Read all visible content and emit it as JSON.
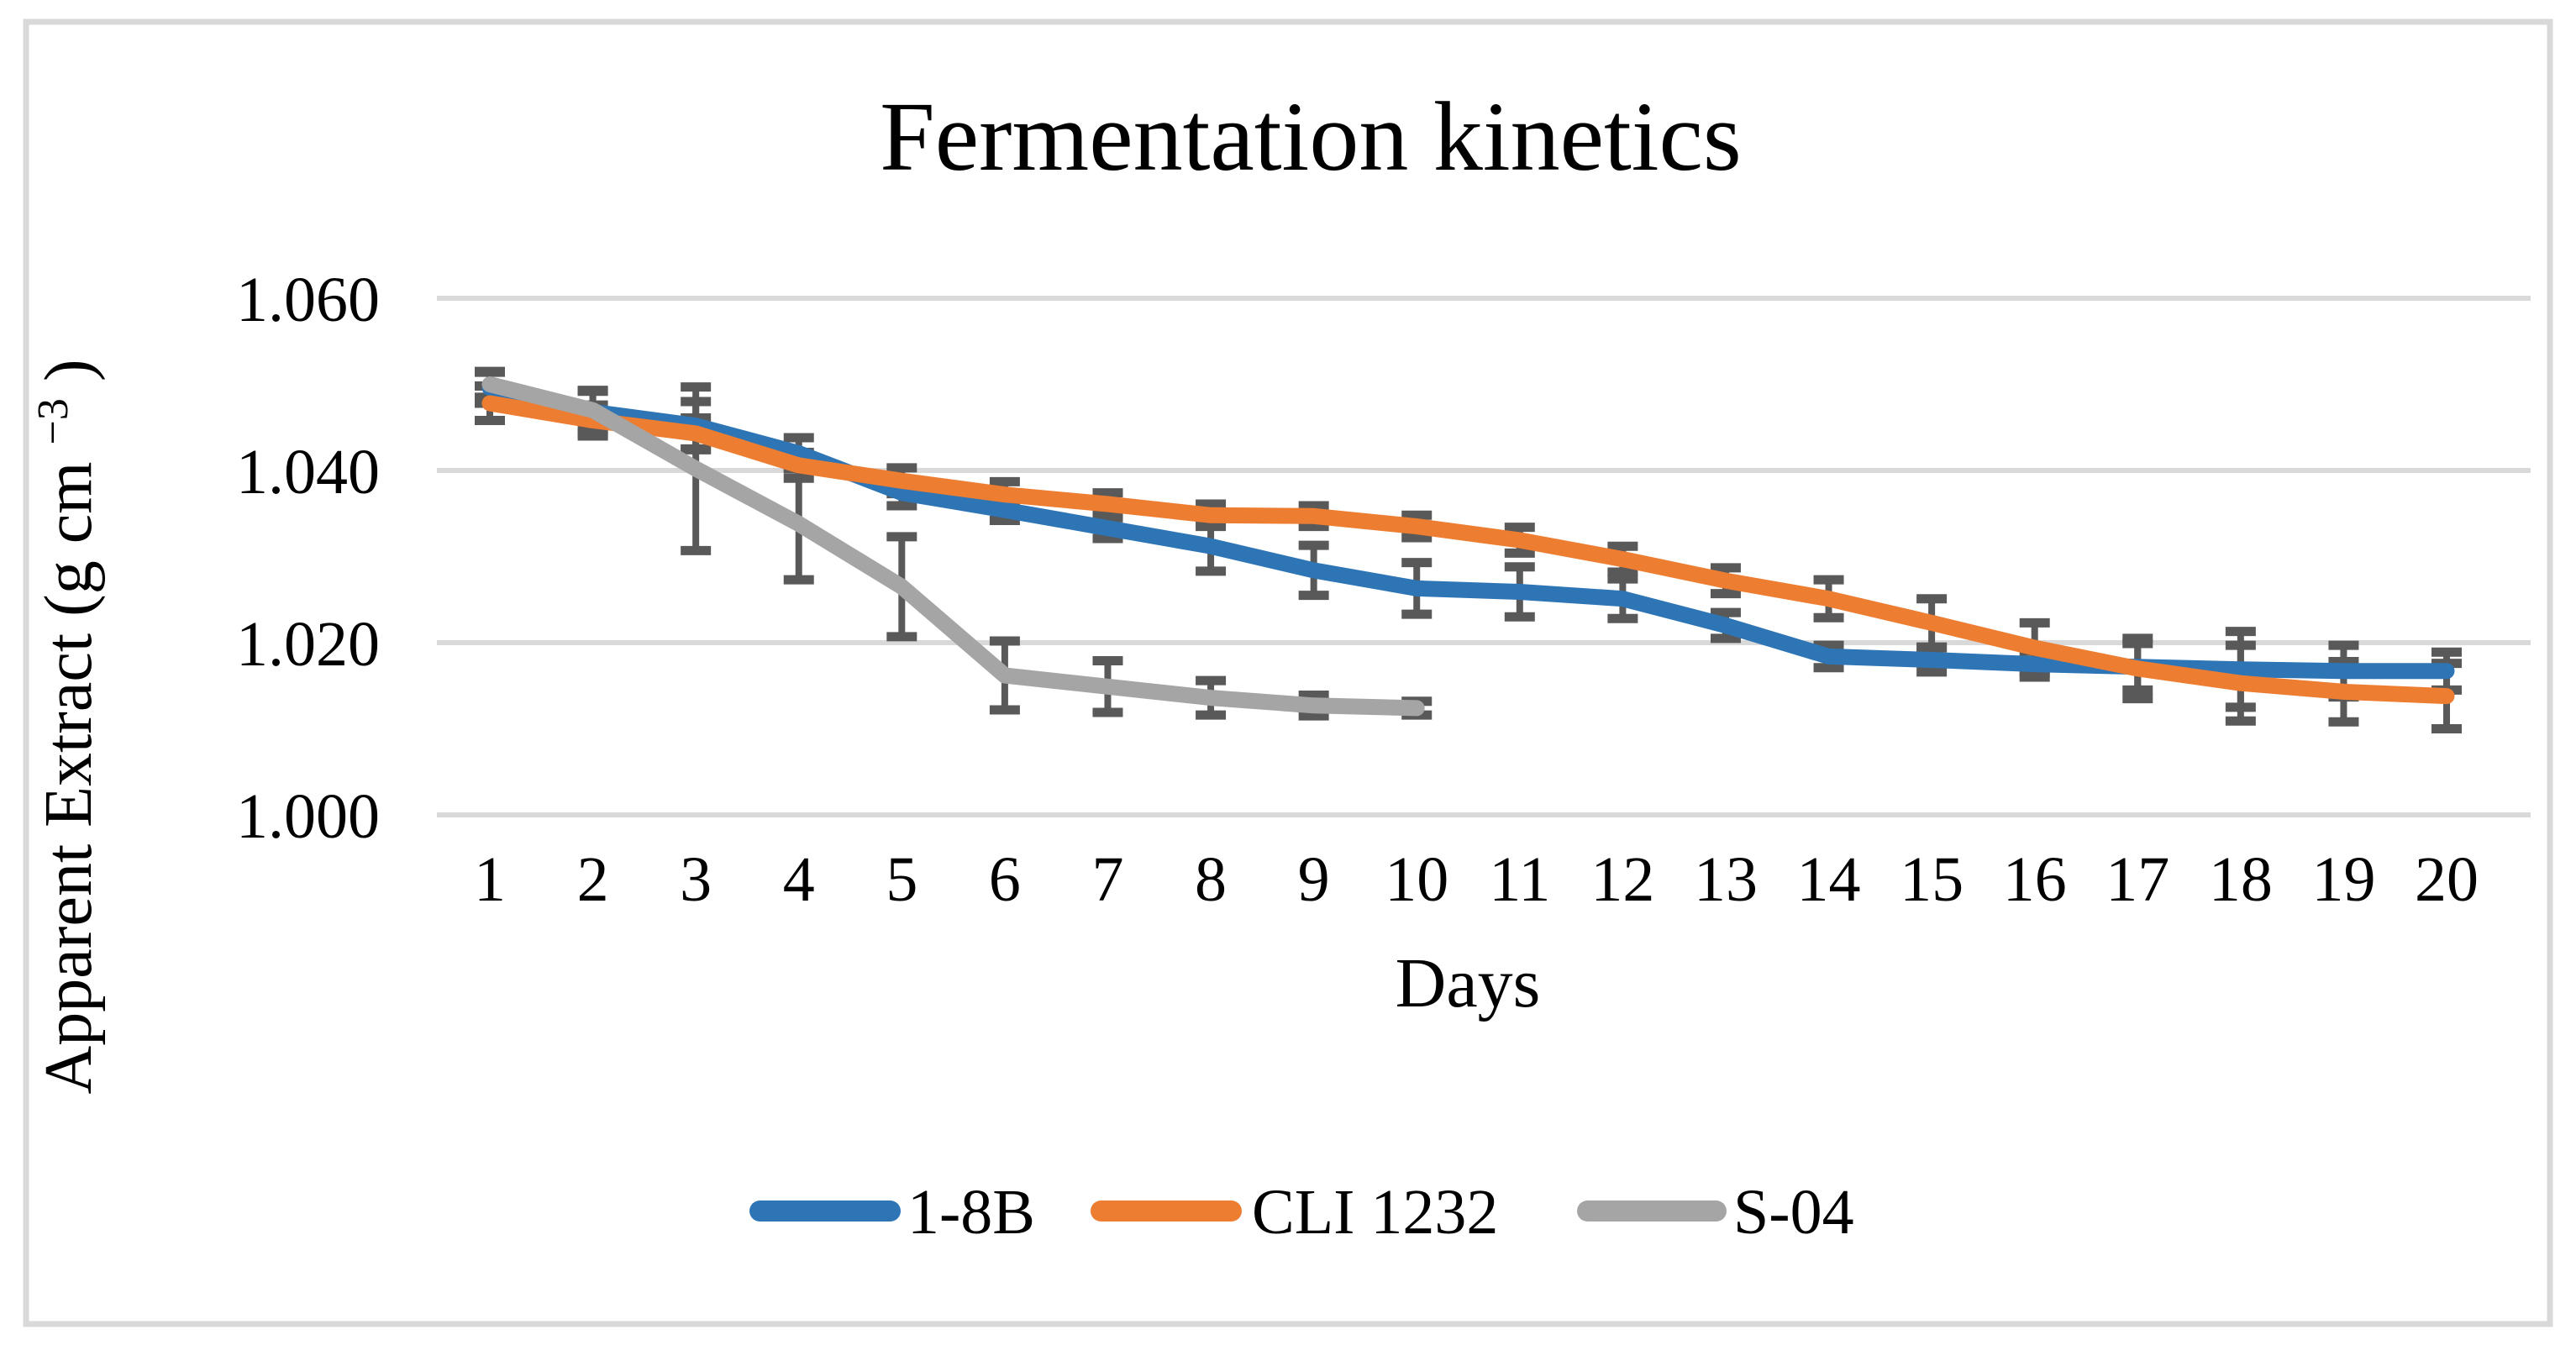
{
  "chart_data": {
    "type": "line",
    "title": "Fermentation kinetics",
    "xlabel": "Days",
    "ylabel": "Apparent Extract (g cm−3)",
    "ylabel_parts": {
      "prefix": "Apparent Extract (g cm",
      "superscript": "−3",
      "suffix": ")"
    },
    "x": [
      1,
      2,
      3,
      4,
      5,
      6,
      7,
      8,
      9,
      10,
      11,
      12,
      13,
      14,
      15,
      16,
      17,
      18,
      19,
      20
    ],
    "x_tick_labels": [
      "1",
      "2",
      "3",
      "4",
      "5",
      "6",
      "7",
      "8",
      "9",
      "10",
      "11",
      "12",
      "13",
      "14",
      "15",
      "16",
      "17",
      "18",
      "19",
      "20"
    ],
    "y_ticks": [
      1.0,
      1.02,
      1.04,
      1.06
    ],
    "y_tick_labels": [
      "1.000",
      "1.020",
      "1.040",
      "1.060"
    ],
    "ylim": [
      1.0,
      1.06
    ],
    "grid": true,
    "legend_position": "bottom",
    "gridline_color": "#D9D9D9",
    "error_bar_color": "#595959",
    "frame_color": "#D9D9D9",
    "series": [
      {
        "name": "1-8B",
        "color": "#2E75B6",
        "values": [
          1.0496,
          1.0468,
          1.0452,
          1.042,
          1.0374,
          1.0354,
          1.0333,
          1.0312,
          1.0284,
          1.0263,
          1.0259,
          1.0251,
          1.022,
          1.0184,
          1.018,
          1.0175,
          1.0172,
          1.0169,
          1.0167,
          1.0167
        ],
        "errors": [
          0.0018,
          0.0025,
          0.0028,
          0.0018,
          0.0015,
          0.0012,
          0.0012,
          0.0029,
          0.0029,
          0.003,
          0.0029,
          0.0023,
          0.0015,
          0.0013,
          0.0014,
          0.0015,
          0.0027,
          0.0044,
          0.003,
          0.0022
        ]
      },
      {
        "name": "CLI 1232",
        "color": "#ED7D31",
        "values": [
          1.0478,
          1.0458,
          1.0443,
          1.0406,
          1.0388,
          1.0372,
          1.0361,
          1.0348,
          1.0347,
          1.0335,
          1.0319,
          1.0297,
          1.0272,
          1.0251,
          1.0223,
          1.0194,
          1.017,
          1.0153,
          1.0143,
          1.0138
        ],
        "errors": [
          0.002,
          0.0018,
          0.0018,
          0.0015,
          0.0015,
          0.0015,
          0.0013,
          0.0013,
          0.0012,
          0.0013,
          0.0015,
          0.0015,
          0.0015,
          0.0022,
          0.0028,
          0.0029,
          0.0035,
          0.0044,
          0.0035,
          0.0038
        ]
      },
      {
        "name": "S-04",
        "color": "#A5A5A5",
        "values": [
          1.05,
          1.047,
          1.0402,
          1.0338,
          1.0265,
          1.0162,
          1.0149,
          1.0136,
          1.0127,
          1.0124
        ],
        "errors": [
          0.0015,
          0.0022,
          0.0095,
          0.0065,
          0.0058,
          0.004,
          0.003,
          0.002,
          0.0012,
          0.0008
        ]
      }
    ]
  }
}
